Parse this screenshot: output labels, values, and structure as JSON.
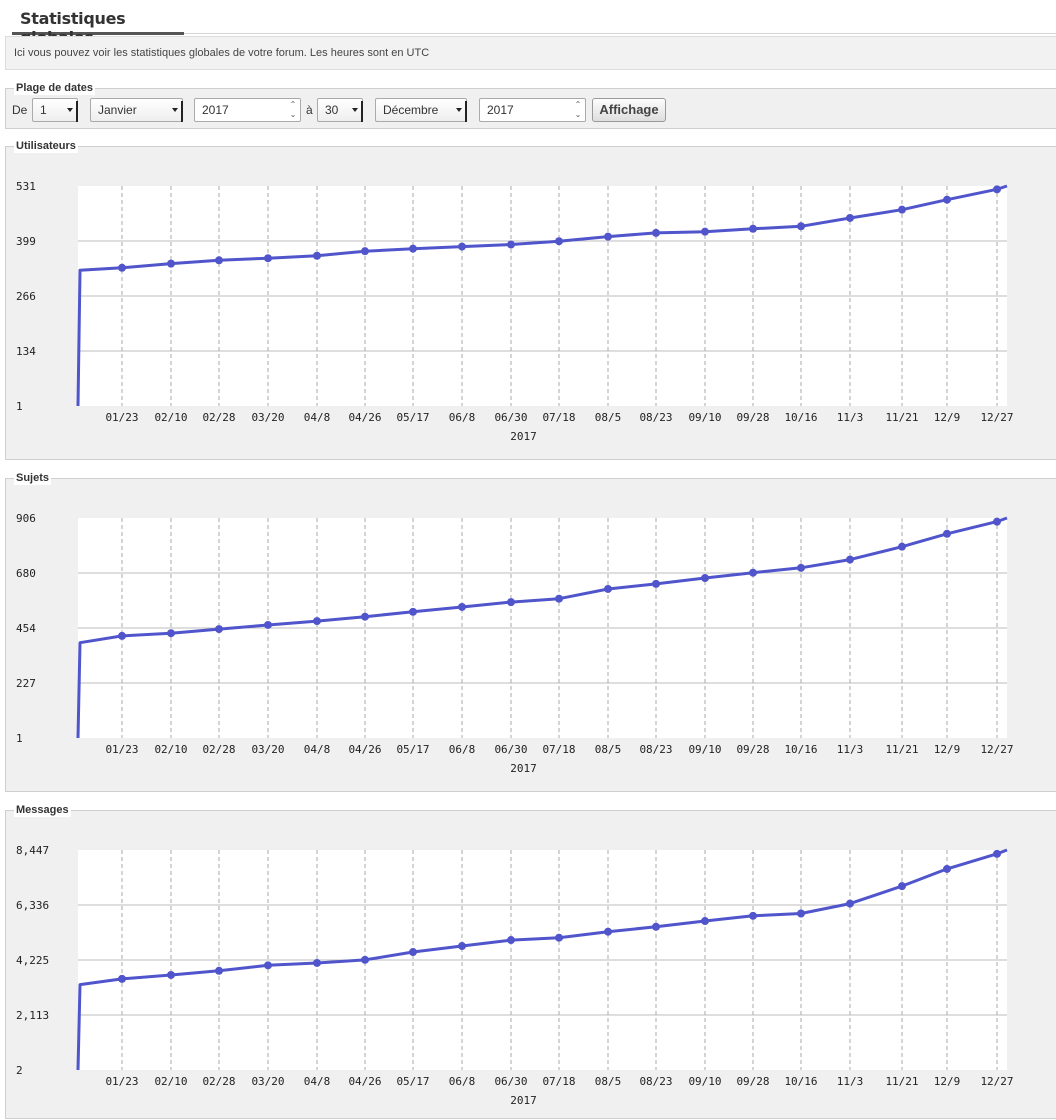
{
  "page": {
    "title": "Statistiques globales",
    "intro": "Ici vous pouvez voir les statistiques globales de votre forum. Les heures sont en UTC"
  },
  "date_range": {
    "legend": "Plage de dates",
    "from_label": "De",
    "from_day": "1",
    "from_month": "Janvier",
    "from_year": "2017",
    "to_label": "à",
    "to_day": "30",
    "to_month": "Décembre",
    "to_year": "2017",
    "submit_label": "Affichage"
  },
  "colors": {
    "line": "#5055cc",
    "grid": "#bdbdbd",
    "plot_bg": "#ffffff",
    "panel_bg": "#f0f0f0"
  },
  "chart_data": [
    {
      "type": "line",
      "title": "Utilisateurs",
      "xlabel": "2017",
      "x_ticks": [
        "01/23",
        "02/10",
        "02/28",
        "03/20",
        "04/8",
        "04/26",
        "05/17",
        "06/8",
        "06/30",
        "07/18",
        "08/5",
        "08/23",
        "09/10",
        "09/28",
        "10/16",
        "11/3",
        "11/21",
        "12/9",
        "12/27"
      ],
      "y_ticks": [
        "1",
        "134",
        "266",
        "399",
        "531"
      ],
      "ylim": [
        1,
        531
      ],
      "start_values": [
        1,
        328
      ],
      "values": [
        334,
        344,
        352,
        357,
        363,
        374,
        380,
        385,
        390,
        398,
        409,
        418,
        421,
        428,
        434,
        454,
        474,
        498,
        523
      ],
      "end_value": 531,
      "grid": true
    },
    {
      "type": "line",
      "title": "Sujets",
      "xlabel": "2017",
      "x_ticks": [
        "01/23",
        "02/10",
        "02/28",
        "03/20",
        "04/8",
        "04/26",
        "05/17",
        "06/8",
        "06/30",
        "07/18",
        "08/5",
        "08/23",
        "09/10",
        "09/28",
        "10/16",
        "11/3",
        "11/21",
        "12/9",
        "12/27"
      ],
      "y_ticks": [
        "1",
        "227",
        "454",
        "680",
        "906"
      ],
      "ylim": [
        1,
        906
      ],
      "start_values": [
        1,
        393
      ],
      "values": [
        421,
        432,
        449,
        466,
        482,
        500,
        520,
        540,
        560,
        574,
        614,
        635,
        659,
        681,
        701,
        735,
        788,
        841,
        891
      ],
      "end_value": 906,
      "grid": true
    },
    {
      "type": "line",
      "title": "Messages",
      "xlabel": "2017",
      "x_ticks": [
        "01/23",
        "02/10",
        "02/28",
        "03/20",
        "04/8",
        "04/26",
        "05/17",
        "06/8",
        "06/30",
        "07/18",
        "08/5",
        "08/23",
        "09/10",
        "09/28",
        "10/16",
        "11/3",
        "11/21",
        "12/9",
        "12/27"
      ],
      "y_ticks": [
        "2",
        "2,113",
        "4,225",
        "6,336",
        "8,447"
      ],
      "ylim": [
        2,
        8447
      ],
      "start_values": [
        2,
        3280
      ],
      "values": [
        3500,
        3650,
        3810,
        4020,
        4110,
        4230,
        4530,
        4760,
        4990,
        5080,
        5310,
        5500,
        5720,
        5920,
        6010,
        6390,
        7060,
        7720,
        8300
      ],
      "end_value": 8447,
      "grid": true
    }
  ]
}
